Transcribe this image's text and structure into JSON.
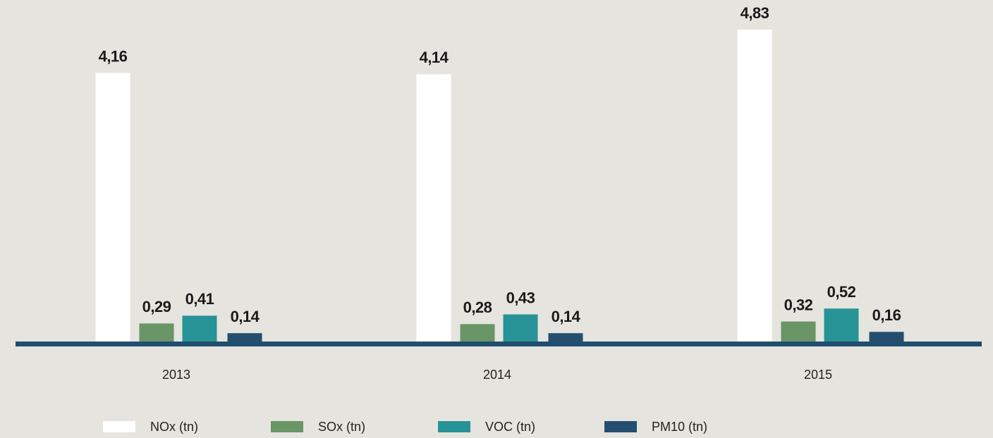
{
  "chart_data": {
    "type": "bar",
    "categories": [
      "2013",
      "2014",
      "2015"
    ],
    "series": [
      {
        "name": "NOx (tn)",
        "color": "#ffffff",
        "values": [
          4.16,
          4.14,
          4.83
        ],
        "value_labels": [
          "4,16",
          "4,14",
          "4,83"
        ]
      },
      {
        "name": "SOx (tn)",
        "color": "#6a9566",
        "values": [
          0.29,
          0.28,
          0.32
        ],
        "value_labels": [
          "0,29",
          "0,28",
          "0,32"
        ]
      },
      {
        "name": "VOC (tn)",
        "color": "#279396",
        "values": [
          0.41,
          0.43,
          0.52
        ],
        "value_labels": [
          "0,41",
          "0,43",
          "0,52"
        ]
      },
      {
        "name": "PM10 (tn)",
        "color": "#244e6f",
        "values": [
          0.14,
          0.14,
          0.16
        ],
        "value_labels": [
          "0,14",
          "0,14",
          "0,16"
        ]
      }
    ]
  }
}
